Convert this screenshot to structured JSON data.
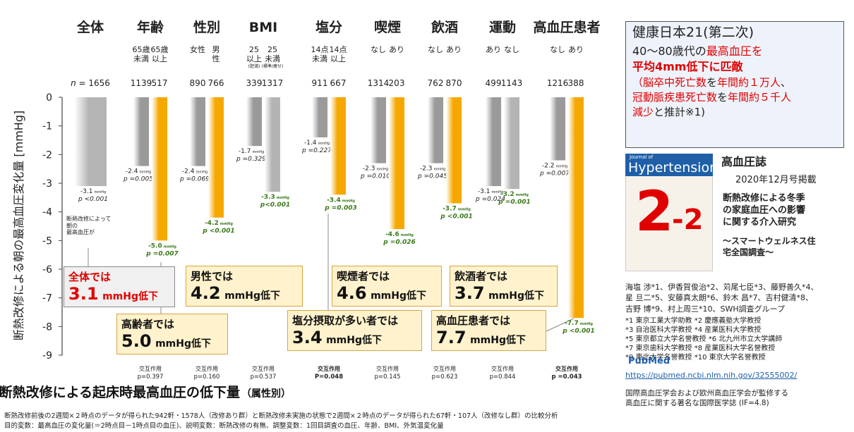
{
  "chart_data": {
    "type": "grouped-bar",
    "title": "断熱改修による起床時最高血圧の低下量",
    "title_suffix": "（属性別）",
    "y_label": "断熱改修による朝の最高血圧変化量 [mmHg]",
    "ylim": [
      -9,
      0
    ],
    "yticks": [
      0,
      -1,
      -2,
      -3,
      -4,
      -5,
      -6,
      -7,
      -8,
      -9
    ],
    "unit": "mmHg",
    "n_prefix": "n =",
    "interaction_label": "交互作用",
    "annotation": "断熱改修によって\n朝の\n最高血圧が",
    "groups": [
      {
        "name": "全体",
        "bars": [
          {
            "n": 1656,
            "value": -3.1,
            "p": "p <0.001",
            "color": "#b4b4b4",
            "label_color": "#222"
          }
        ]
      },
      {
        "name": "年齢",
        "interaction": "p=0.397",
        "bars": [
          {
            "label": "65歳\n未満",
            "n": 1139,
            "value": -2.4,
            "p": "p =0.005",
            "color": "#9a9a9a",
            "label_color": "#222"
          },
          {
            "label": "65歳\n以上",
            "n": 517,
            "value": -5,
            "value_label": "-5.0",
            "p": "p =0.007",
            "color": "#f5a800",
            "label_color": "#3a7a1a"
          }
        ]
      },
      {
        "name": "性別",
        "interaction": "p=0.160",
        "bars": [
          {
            "label": "女性",
            "n": 890,
            "value": -2.4,
            "p": "p =0.069",
            "color": "#9a9a9a",
            "label_color": "#222"
          },
          {
            "label": "男\n性",
            "n": 766,
            "value": -4.2,
            "p": "p <0.001",
            "color": "#f5a800",
            "label_color": "#3a7a1a"
          }
        ]
      },
      {
        "name": "BMI",
        "interaction": "p=0.537",
        "bars": [
          {
            "label": "25\n以上",
            "note": "(肥満)",
            "n": 339,
            "value": -1.7,
            "p": "p =0.329",
            "color": "#9a9a9a",
            "label_color": "#222"
          },
          {
            "label": "25\n未満",
            "note": "(標準/痩せ)",
            "n": 1317,
            "value": -3.3,
            "p": "p<0.001",
            "color": "#b4b4b4",
            "label_color": "#3a7a1a"
          }
        ]
      },
      {
        "name": "塩分",
        "interaction": "P=0.048",
        "interaction_bold": true,
        "bars": [
          {
            "label": "14点\n未満",
            "n": 911,
            "value": -1.4,
            "p": "p =0.227",
            "color": "#9a9a9a",
            "label_color": "#222"
          },
          {
            "label": "14点\n以上",
            "n": 667,
            "value": -3.4,
            "p": "p =0.003",
            "color": "#f5a800",
            "label_color": "#3a7a1a"
          }
        ]
      },
      {
        "name": "喫煙",
        "interaction": "p=0.145",
        "bars": [
          {
            "label": "なし",
            "n": 1314,
            "value": -2.3,
            "p": "p =0.010",
            "color": "#9a9a9a",
            "label_color": "#222"
          },
          {
            "label": "あり",
            "n": 203,
            "value": -4.6,
            "p": "p =0.026",
            "color": "#f5a800",
            "label_color": "#3a7a1a"
          }
        ]
      },
      {
        "name": "飲酒",
        "interaction": "p=0.623",
        "bars": [
          {
            "label": "なし",
            "n": 762,
            "value": -2.3,
            "p": "p =0.045",
            "color": "#9a9a9a",
            "label_color": "#222"
          },
          {
            "label": "あり",
            "n": 870,
            "value": -3.7,
            "p": "p <0.001",
            "color": "#f5a800",
            "label_color": "#3a7a1a"
          }
        ]
      },
      {
        "name": "運動",
        "interaction": "p=0.844",
        "bars": [
          {
            "label": "あり",
            "n": 499,
            "value": -3.1,
            "p": "p =0.024",
            "color": "#9a9a9a",
            "label_color": "#222"
          },
          {
            "label": "なし",
            "n": 1143,
            "value": -3.2,
            "p": "p =0.001",
            "color": "#b4b4b4",
            "label_color": "#3a7a1a"
          }
        ]
      },
      {
        "name": "高血圧患者",
        "interaction": "p =0.043",
        "interaction_bold": true,
        "bars": [
          {
            "label": "なし",
            "n": 1216,
            "value": -2.2,
            "p": "p =0.007",
            "color": "#9a9a9a",
            "label_color": "#222"
          },
          {
            "label": "あり",
            "n": 388,
            "value": -7.7,
            "p": "p <0.001",
            "color": "#f5a800",
            "label_color": "#3a7a1a"
          }
        ]
      }
    ],
    "callouts": [
      {
        "title": "全体では",
        "value": "3.1",
        "unit": "mmHg低下"
      },
      {
        "title": "高齢者では",
        "value": "5.0",
        "unit": "mmHg低下"
      },
      {
        "title": "男性では",
        "value": "4.2",
        "unit": "mmHg低下"
      },
      {
        "title": "塩分摂取が多い者では",
        "value": "3.4",
        "unit": "mmHg低下"
      },
      {
        "title": "喫煙者では",
        "value": "4.6",
        "unit": "mmHg低下"
      },
      {
        "title": "高血圧患者では",
        "value": "7.7",
        "unit": "mmHg低下"
      },
      {
        "title": "飲酒者では",
        "value": "3.7",
        "unit": "mmHg低下"
      }
    ]
  },
  "side": {
    "box_title": "健康日本21(第二次)",
    "box_lines": [
      [
        {
          "text": "40～80歳代の",
          "color": "#222"
        },
        {
          "text": "最高血圧を",
          "color": "#e00000"
        }
      ],
      [
        {
          "text": "平均4mm低下に匹敵",
          "color": "#e00000"
        }
      ],
      [
        {
          "text": " ",
          "color": "#222"
        }
      ],
      [
        {
          "text": "（脳卒中死亡数",
          "color": "#e00000"
        },
        {
          "text": "を",
          "color": "#222"
        },
        {
          "text": "年間約１万人",
          "color": "#e00000"
        },
        {
          "text": "、",
          "color": "#222"
        }
      ],
      [
        {
          "text": "冠動脈疾患死亡数",
          "color": "#e00000"
        },
        {
          "text": "を",
          "color": "#222"
        },
        {
          "text": "年間約５千人",
          "color": "#e00000"
        }
      ],
      [
        {
          "text": "減少",
          "color": "#e00000"
        },
        {
          "text": "と推計※1)",
          "color": "#222"
        }
      ]
    ],
    "journal_of": "Journal of",
    "journal_name": "Hypertension",
    "issue_main": "2",
    "issue_sub": "-2",
    "journal_title": "高血圧誌",
    "journal_date": "2020年12月号掲載",
    "paper_title": "断熱改修による冬季\nの家庭血圧への影響\nに関する介入研究",
    "paper_subtitle": "～スマートウェルネス住\n宅全国調査～",
    "authors": "海塩 渉*1、伊香賀俊治*2、苅尾七臣*3、藤野善久*4、\n星 旦二*5、安藤真太朗*6、鈴木 昌*7、吉村健清*8、\n吉野 博*9、村上周三*10、SWH調査グループ",
    "affiliations": "*1 東京工業大学助教 *2 慶應義塾大学教授\n*3 自治医科大学教授 *4 産業医科大学教授\n*5 東京都立大学名誉教授 *6 北九州市立大学講師\n*7 東京歯科大学教授 *8 産業医科大学名誉教授\n*9 東北大学名誉教授 *10 東京大学名誉教授",
    "pubmed": "PubMed",
    "url": "https://pubmed.ncbi.nlm.nih.gov/32555002/",
    "journal_note": "国際高血圧学会および欧州高血圧学会が監修する\n高血圧に関する著名な国際医学誌 (IF=4.8)"
  },
  "footer": "断熱改修前後の2週間×２時点のデータが得られた942軒・1578人（改修あり群）と断熱改修未実施の状態で2週間×２時点のデータが得られた67軒・107人（改修なし群）の比較分析\n目的変数：最高血圧の変化量(＝2時点目－1時点目の血圧)、説明変数：断熱改修の有無、調整変数：1回目調査の血圧、年齢、BMI、外気温変化量"
}
